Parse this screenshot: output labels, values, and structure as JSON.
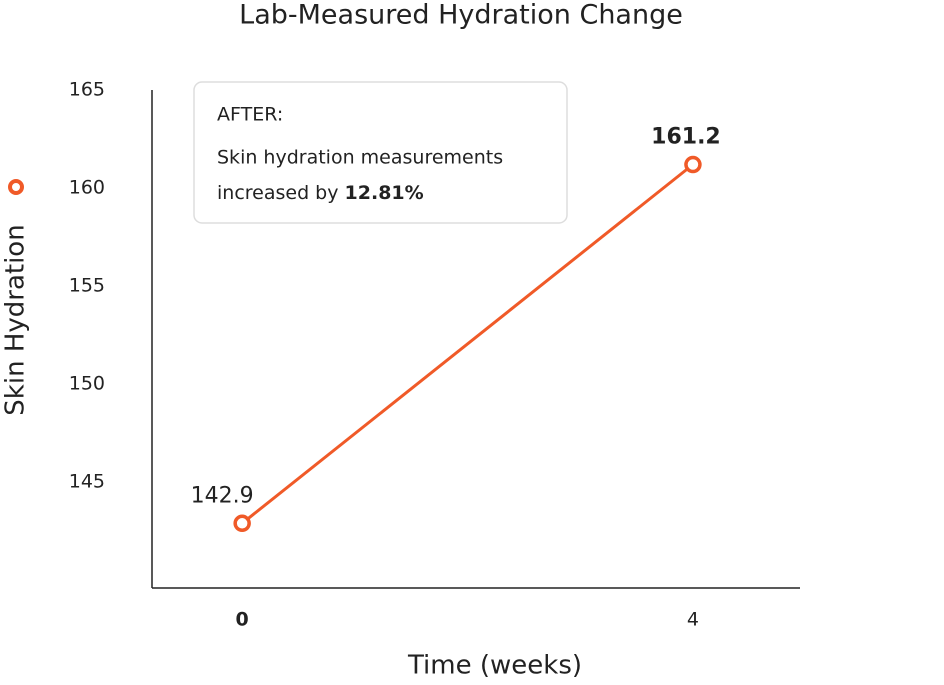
{
  "chart_data": {
    "type": "line",
    "title": "Lab-Measured Hydration Change",
    "x_label": "Time (weeks)",
    "y_label": "Skin Hydration",
    "x": [
      0,
      4
    ],
    "series": [
      {
        "name": "Skin Hydration",
        "color": "#f05a28",
        "values": [
          142.9,
          161.2
        ]
      }
    ],
    "xlim": [
      -0.8,
      4.95
    ],
    "xticks": [
      0,
      4
    ],
    "ylim": [
      139.6,
      165
    ],
    "yticks": [
      145,
      150,
      155,
      160,
      165
    ],
    "grid": false,
    "annotation": {
      "heading": "AFTER:",
      "line1": "Skin hydration measurements",
      "line2": "increased by",
      "highlight": "12.81%"
    }
  }
}
